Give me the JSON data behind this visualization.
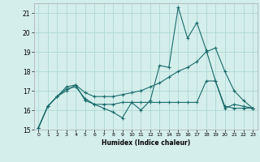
{
  "xlabel": "Humidex (Indice chaleur)",
  "background_color": "#d4eeec",
  "grid_color": "#aed8d5",
  "line_color": "#1a6b6b",
  "xlim": [
    -0.5,
    23.5
  ],
  "ylim": [
    15,
    21.5
  ],
  "yticks": [
    15,
    16,
    17,
    18,
    19,
    20,
    21
  ],
  "xticks": [
    0,
    1,
    2,
    3,
    4,
    5,
    6,
    7,
    8,
    9,
    10,
    11,
    12,
    13,
    14,
    15,
    16,
    17,
    18,
    19,
    20,
    21,
    22,
    23
  ],
  "series": [
    {
      "x": [
        0,
        1,
        2,
        3,
        4,
        5,
        6,
        7,
        8,
        9,
        10,
        11,
        12,
        13,
        14,
        15,
        16,
        17,
        18,
        19,
        20,
        21,
        22,
        23
      ],
      "y": [
        15.1,
        16.2,
        16.7,
        17.2,
        17.3,
        16.5,
        16.3,
        16.1,
        15.9,
        15.6,
        16.4,
        16.0,
        16.5,
        18.3,
        18.2,
        21.3,
        19.7,
        20.5,
        19.1,
        17.5,
        16.1,
        16.3,
        16.2,
        16.1
      ]
    },
    {
      "x": [
        0,
        1,
        2,
        3,
        4,
        5,
        6,
        7,
        8,
        9,
        10,
        11,
        12,
        13,
        14,
        15,
        16,
        17,
        18,
        19,
        20,
        21,
        22,
        23
      ],
      "y": [
        15.1,
        16.2,
        16.7,
        17.0,
        17.3,
        16.9,
        16.7,
        16.7,
        16.7,
        16.8,
        16.9,
        17.0,
        17.2,
        17.4,
        17.7,
        18.0,
        18.2,
        18.5,
        19.0,
        19.2,
        18.0,
        17.0,
        16.5,
        16.1
      ]
    },
    {
      "x": [
        0,
        1,
        2,
        3,
        4,
        5,
        6,
        7,
        8,
        9,
        10,
        11,
        12,
        13,
        14,
        15,
        16,
        17,
        18,
        19,
        20,
        21,
        22,
        23
      ],
      "y": [
        15.1,
        16.2,
        16.7,
        17.1,
        17.2,
        16.6,
        16.3,
        16.3,
        16.3,
        16.4,
        16.4,
        16.4,
        16.4,
        16.4,
        16.4,
        16.4,
        16.4,
        16.4,
        17.5,
        17.5,
        16.2,
        16.1,
        16.1,
        16.1
      ]
    }
  ]
}
